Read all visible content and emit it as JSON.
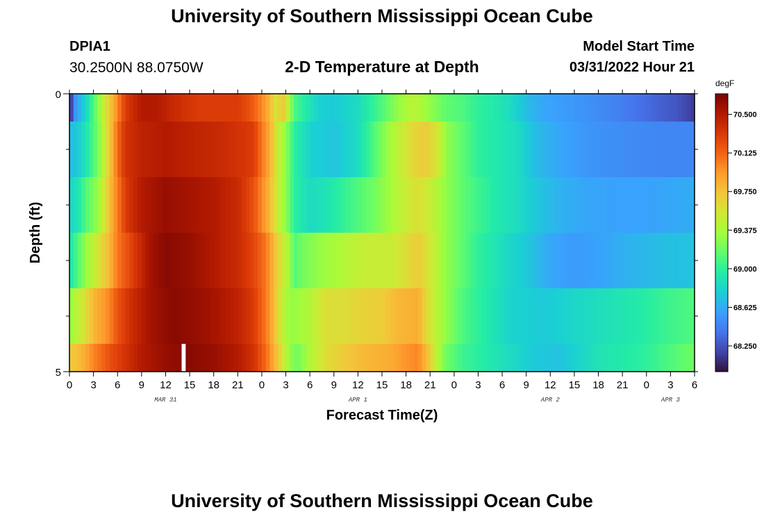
{
  "header": {
    "title": "University of Southern Mississippi Ocean Cube",
    "station_id": "DPIA1",
    "coordinates": "30.2500N  88.0750W",
    "subtitle": "2-D Temperature at Depth",
    "model_start_label": "Model Start Time",
    "model_start_value": "03/31/2022 Hour 21"
  },
  "footer": {
    "title": "University of Southern Mississippi Ocean Cube"
  },
  "colors": {
    "colormap": [
      "#30123b",
      "#4145ab",
      "#4675ed",
      "#39a2fc",
      "#1bcfd4",
      "#24eca6",
      "#61fc6c",
      "#a4fc3b",
      "#d1e834",
      "#f3c63a",
      "#fe9b2d",
      "#f36315",
      "#d93806",
      "#b11901",
      "#7a0403"
    ],
    "missing": "#ffffff",
    "frame": "#000000"
  },
  "chart_data": {
    "type": "heatmap",
    "title": "2-D Temperature at Depth",
    "xlabel": "Forecast Time(Z)",
    "ylabel": "Depth (ft)",
    "xlim": [
      0,
      78
    ],
    "ylim": [
      0,
      5
    ],
    "x_tick_labels": [
      "0",
      "3",
      "6",
      "9",
      "12",
      "15",
      "18",
      "21",
      "0",
      "3",
      "6",
      "9",
      "12",
      "15",
      "18",
      "21",
      "0",
      "3",
      "6",
      "9",
      "12",
      "15",
      "18",
      "21",
      "0",
      "3",
      "6"
    ],
    "y_tick_labels": [
      "0",
      "5"
    ],
    "date_labels": [
      {
        "label": "MAR 31",
        "hour": 12
      },
      {
        "label": "APR 1",
        "hour": 36
      },
      {
        "label": "APR 2",
        "hour": 60
      },
      {
        "label": "APR 3",
        "hour": 75
      }
    ],
    "colorbar": {
      "unit": "degF",
      "min": 68.0,
      "max": 70.7,
      "ticks": [
        "70.500",
        "70.125",
        "69.750",
        "69.375",
        "69.000",
        "68.625",
        "68.250"
      ],
      "tick_values": [
        70.5,
        70.125,
        69.75,
        69.375,
        69.0,
        68.625,
        68.25
      ]
    },
    "missing_cells": [
      {
        "layer": 5,
        "hour_start": 14.0,
        "hour_end": 14.5
      }
    ],
    "layers": [
      {
        "depth_range": [
          0,
          0.5
        ],
        "profile": [
          [
            0,
            68.0
          ],
          [
            0.6,
            68.5
          ],
          [
            1.5,
            68.7
          ],
          [
            2.5,
            68.95
          ],
          [
            4,
            69.4
          ],
          [
            5,
            69.7
          ],
          [
            6,
            70.0
          ],
          [
            7,
            70.3
          ],
          [
            9,
            70.5
          ],
          [
            11,
            70.5
          ],
          [
            13,
            70.4
          ],
          [
            16,
            70.3
          ],
          [
            21,
            70.3
          ],
          [
            22.5,
            70.2
          ],
          [
            24,
            70.0
          ],
          [
            25,
            69.8
          ],
          [
            26,
            69.5
          ],
          [
            26.5,
            69.8
          ],
          [
            27,
            69.6
          ],
          [
            28,
            69.1
          ],
          [
            30,
            68.9
          ],
          [
            31,
            68.8
          ],
          [
            33,
            68.75
          ],
          [
            36,
            68.85
          ],
          [
            39,
            69.1
          ],
          [
            41,
            69.3
          ],
          [
            43,
            69.45
          ],
          [
            45,
            69.3
          ],
          [
            47,
            69.15
          ],
          [
            49,
            69.1
          ],
          [
            51,
            69.0
          ],
          [
            53,
            68.95
          ],
          [
            55,
            68.85
          ],
          [
            57,
            68.7
          ],
          [
            59,
            68.6
          ],
          [
            62,
            68.55
          ],
          [
            65,
            68.5
          ],
          [
            68,
            68.45
          ],
          [
            70,
            68.4
          ],
          [
            72,
            68.35
          ],
          [
            74,
            68.3
          ],
          [
            76,
            68.25
          ],
          [
            78,
            68.15
          ]
        ]
      },
      {
        "depth_range": [
          0.5,
          1.5
        ],
        "profile": [
          [
            0,
            68.7
          ],
          [
            1,
            68.75
          ],
          [
            2,
            68.9
          ],
          [
            3.5,
            69.2
          ],
          [
            5,
            69.7
          ],
          [
            6,
            70.1
          ],
          [
            7,
            70.35
          ],
          [
            9,
            70.45
          ],
          [
            12,
            70.5
          ],
          [
            15,
            70.45
          ],
          [
            19,
            70.4
          ],
          [
            21,
            70.35
          ],
          [
            23,
            70.3
          ],
          [
            24,
            70.05
          ],
          [
            25,
            69.85
          ],
          [
            26,
            69.5
          ],
          [
            27,
            69.3
          ],
          [
            28,
            69.0
          ],
          [
            30,
            68.8
          ],
          [
            33,
            68.72
          ],
          [
            36,
            68.85
          ],
          [
            38,
            69.1
          ],
          [
            40,
            69.35
          ],
          [
            41,
            69.45
          ],
          [
            43,
            69.65
          ],
          [
            44.5,
            69.7
          ],
          [
            46,
            69.55
          ],
          [
            47,
            69.3
          ],
          [
            49,
            69.15
          ],
          [
            51,
            69.0
          ],
          [
            53,
            68.95
          ],
          [
            56,
            68.85
          ],
          [
            58,
            68.7
          ],
          [
            61,
            68.6
          ],
          [
            65,
            68.52
          ],
          [
            70,
            68.48
          ],
          [
            74,
            68.46
          ],
          [
            78,
            68.46
          ]
        ]
      },
      {
        "depth_range": [
          1.5,
          2.5
        ],
        "profile": [
          [
            0,
            68.8
          ],
          [
            1,
            68.9
          ],
          [
            2,
            69.1
          ],
          [
            3.5,
            69.3
          ],
          [
            4.5,
            69.6
          ],
          [
            5.5,
            69.9
          ],
          [
            7,
            70.3
          ],
          [
            9,
            70.5
          ],
          [
            12,
            70.6
          ],
          [
            15,
            70.55
          ],
          [
            18,
            70.5
          ],
          [
            21,
            70.4
          ],
          [
            23,
            70.2
          ],
          [
            24,
            70.0
          ],
          [
            25,
            69.8
          ],
          [
            26,
            69.5
          ],
          [
            27,
            69.3
          ],
          [
            28,
            69.0
          ],
          [
            30,
            68.85
          ],
          [
            32,
            68.9
          ],
          [
            34,
            69.0
          ],
          [
            36,
            69.1
          ],
          [
            38,
            69.2
          ],
          [
            40,
            69.35
          ],
          [
            42,
            69.5
          ],
          [
            43.5,
            69.6
          ],
          [
            45,
            69.5
          ],
          [
            47,
            69.3
          ],
          [
            49,
            69.15
          ],
          [
            51,
            69.05
          ],
          [
            53,
            68.95
          ],
          [
            56,
            68.85
          ],
          [
            58,
            68.75
          ],
          [
            61,
            68.65
          ],
          [
            64,
            68.6
          ],
          [
            68,
            68.58
          ],
          [
            72,
            68.58
          ],
          [
            75,
            68.6
          ],
          [
            78,
            68.62
          ]
        ]
      },
      {
        "depth_range": [
          2.5,
          3.5
        ],
        "profile": [
          [
            0,
            68.9
          ],
          [
            1,
            69.1
          ],
          [
            2,
            69.3
          ],
          [
            3.5,
            69.55
          ],
          [
            5,
            69.8
          ],
          [
            6,
            70.05
          ],
          [
            8,
            70.3
          ],
          [
            10,
            70.55
          ],
          [
            12,
            70.65
          ],
          [
            15,
            70.6
          ],
          [
            18,
            70.5
          ],
          [
            21,
            70.4
          ],
          [
            23,
            70.25
          ],
          [
            24.5,
            70.05
          ],
          [
            25.5,
            69.8
          ],
          [
            26.5,
            69.55
          ],
          [
            27.5,
            69.35
          ],
          [
            28,
            69.1
          ],
          [
            29,
            69.2
          ],
          [
            31,
            69.3
          ],
          [
            34,
            69.4
          ],
          [
            37,
            69.5
          ],
          [
            40,
            69.5
          ],
          [
            42,
            69.6
          ],
          [
            43.5,
            69.7
          ],
          [
            45,
            69.55
          ],
          [
            47,
            69.3
          ],
          [
            49,
            69.15
          ],
          [
            51,
            69.0
          ],
          [
            53,
            68.92
          ],
          [
            55,
            68.82
          ],
          [
            57,
            68.75
          ],
          [
            60,
            68.6
          ],
          [
            63,
            68.55
          ],
          [
            66,
            68.58
          ],
          [
            70,
            68.65
          ],
          [
            74,
            68.7
          ],
          [
            78,
            68.72
          ]
        ]
      },
      {
        "depth_range": [
          3.5,
          4.5
        ],
        "profile": [
          [
            0,
            69.3
          ],
          [
            1,
            69.45
          ],
          [
            2,
            69.6
          ],
          [
            3,
            69.8
          ],
          [
            5,
            70.0
          ],
          [
            6,
            70.2
          ],
          [
            8,
            70.4
          ],
          [
            10,
            70.55
          ],
          [
            13,
            70.65
          ],
          [
            16,
            70.6
          ],
          [
            18,
            70.55
          ],
          [
            21,
            70.45
          ],
          [
            23,
            70.3
          ],
          [
            24.5,
            70.05
          ],
          [
            25.5,
            69.8
          ],
          [
            26.5,
            69.5
          ],
          [
            27.5,
            69.3
          ],
          [
            29,
            69.35
          ],
          [
            30.5,
            69.45
          ],
          [
            32,
            69.6
          ],
          [
            34,
            69.6
          ],
          [
            36,
            69.65
          ],
          [
            39,
            69.7
          ],
          [
            41,
            69.8
          ],
          [
            43.5,
            69.85
          ],
          [
            45,
            69.55
          ],
          [
            47,
            69.3
          ],
          [
            49,
            69.1
          ],
          [
            51,
            69.0
          ],
          [
            53,
            68.9
          ],
          [
            55,
            68.8
          ],
          [
            57,
            68.78
          ],
          [
            59,
            68.75
          ],
          [
            61,
            68.78
          ],
          [
            63,
            68.82
          ],
          [
            65,
            68.85
          ],
          [
            68,
            68.9
          ],
          [
            71,
            68.95
          ],
          [
            75,
            69.05
          ],
          [
            78,
            69.1
          ]
        ]
      },
      {
        "depth_range": [
          4.5,
          5.0
        ],
        "profile": [
          [
            0,
            69.7
          ],
          [
            1.5,
            69.8
          ],
          [
            3,
            70.0
          ],
          [
            5,
            70.2
          ],
          [
            7,
            70.35
          ],
          [
            9,
            70.5
          ],
          [
            12,
            70.6
          ],
          [
            15,
            70.65
          ],
          [
            18,
            70.6
          ],
          [
            21,
            70.5
          ],
          [
            23,
            70.35
          ],
          [
            24.5,
            70.1
          ],
          [
            25.5,
            69.85
          ],
          [
            26.5,
            69.6
          ],
          [
            27.5,
            69.3
          ],
          [
            28.5,
            69.2
          ],
          [
            30,
            69.4
          ],
          [
            32,
            69.6
          ],
          [
            34,
            69.7
          ],
          [
            37,
            69.8
          ],
          [
            40,
            69.85
          ],
          [
            42,
            69.95
          ],
          [
            43.5,
            70.0
          ],
          [
            45,
            69.7
          ],
          [
            46,
            69.4
          ],
          [
            47,
            69.2
          ],
          [
            49,
            69.05
          ],
          [
            52,
            68.95
          ],
          [
            55,
            68.85
          ],
          [
            58,
            68.75
          ],
          [
            61,
            68.72
          ],
          [
            64,
            68.82
          ],
          [
            66,
            68.9
          ],
          [
            69,
            68.95
          ],
          [
            72,
            69.0
          ],
          [
            75,
            69.1
          ],
          [
            78,
            69.2
          ]
        ]
      }
    ]
  }
}
